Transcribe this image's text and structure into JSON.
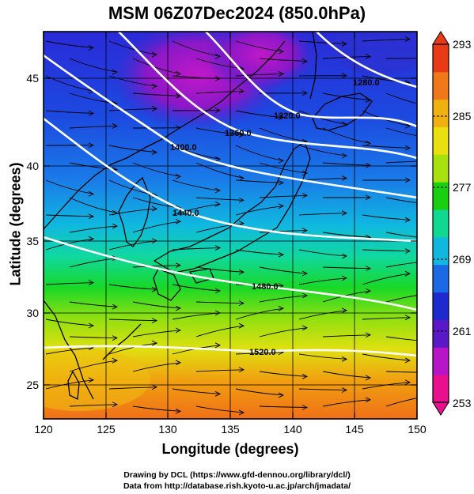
{
  "title": "MSM 06Z07Dec2024 (850.0hPa)",
  "x_axis": {
    "label": "Longitude (degrees)",
    "ticks": [
      "120",
      "125",
      "130",
      "135",
      "140",
      "145",
      "150"
    ],
    "range": [
      120,
      150
    ]
  },
  "y_axis": {
    "label": "Latitude  (degrees)",
    "ticks": [
      "25",
      "30",
      "35",
      "40",
      "45"
    ],
    "range": [
      22.4,
      47.6
    ]
  },
  "colorbar": {
    "ticks": [
      "293",
      "285",
      "277",
      "269",
      "261",
      "253"
    ],
    "range": [
      253,
      293
    ],
    "colors": [
      "#e8108c",
      "#b814c8",
      "#5a18c8",
      "#1c2ad0",
      "#1a6ae8",
      "#10b8e0",
      "#10d890",
      "#18d010",
      "#a8e010",
      "#e8e010",
      "#f0b010",
      "#f07818",
      "#e83a14"
    ]
  },
  "contour_labels": [
    "1280.0",
    "1320.0",
    "1360.0",
    "1400.0",
    "1440.0",
    "1480.0",
    "1520.0"
  ],
  "credits": {
    "line1": "Drawing by DCL (https://www.gfd-dennou.org/library/dcl/)",
    "line2": "Data from http://database.rish.kyoto-u.ac.jp/arch/jmadata/"
  },
  "colors": {
    "contour": "#ffffff",
    "streamline": "#000000",
    "coast": "#000000",
    "grid": "#000000"
  }
}
